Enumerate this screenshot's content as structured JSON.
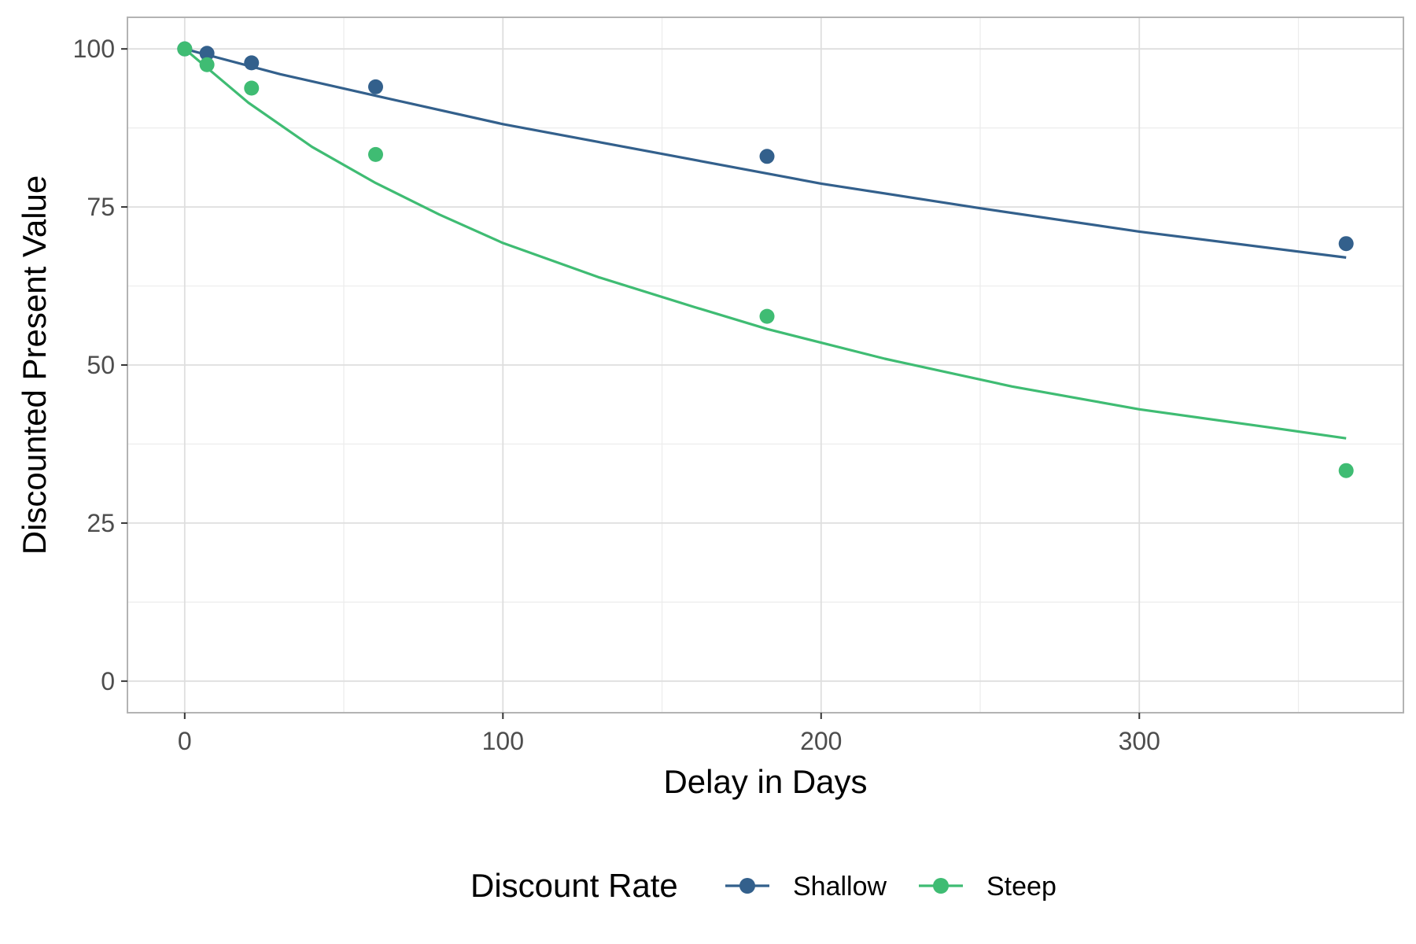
{
  "chart_data": {
    "type": "scatter",
    "title": "",
    "xlabel": "Delay in Days",
    "ylabel": "Discounted Present Value",
    "xlim": [
      -18,
      383
    ],
    "ylim": [
      -5,
      105
    ],
    "x_ticks": [
      0,
      100,
      200,
      300
    ],
    "x_tick_labels": [
      "0",
      "100",
      "200",
      "300"
    ],
    "y_ticks": [
      0,
      25,
      50,
      75,
      100
    ],
    "y_tick_labels": [
      "0",
      "25",
      "50",
      "75",
      "100"
    ],
    "grid": true,
    "legend": {
      "title": "Discount Rate",
      "position": "bottom"
    },
    "series": [
      {
        "name": "Shallow",
        "color": "#33608c",
        "points": [
          {
            "x": 0,
            "y": 100
          },
          {
            "x": 7,
            "y": 99.3
          },
          {
            "x": 21,
            "y": 97.8
          },
          {
            "x": 60,
            "y": 94
          },
          {
            "x": 183,
            "y": 83
          },
          {
            "x": 365,
            "y": 69.2
          }
        ],
        "fit_line": [
          {
            "x": 0,
            "y": 100
          },
          {
            "x": 30,
            "y": 96
          },
          {
            "x": 60,
            "y": 92.6
          },
          {
            "x": 100,
            "y": 88.1
          },
          {
            "x": 150,
            "y": 83.4
          },
          {
            "x": 200,
            "y": 78.7
          },
          {
            "x": 250,
            "y": 74.8
          },
          {
            "x": 300,
            "y": 71.1
          },
          {
            "x": 365,
            "y": 67
          }
        ]
      },
      {
        "name": "Steep",
        "color": "#3fbc73",
        "points": [
          {
            "x": 0,
            "y": 100
          },
          {
            "x": 7,
            "y": 97.5
          },
          {
            "x": 21,
            "y": 93.8
          },
          {
            "x": 60,
            "y": 83.3
          },
          {
            "x": 183,
            "y": 57.7
          },
          {
            "x": 365,
            "y": 33.3
          }
        ],
        "fit_line": [
          {
            "x": 0,
            "y": 100
          },
          {
            "x": 20,
            "y": 91.5
          },
          {
            "x": 40,
            "y": 84.5
          },
          {
            "x": 60,
            "y": 78.8
          },
          {
            "x": 80,
            "y": 73.8
          },
          {
            "x": 100,
            "y": 69.3
          },
          {
            "x": 130,
            "y": 63.9
          },
          {
            "x": 160,
            "y": 59.2
          },
          {
            "x": 183,
            "y": 55.7
          },
          {
            "x": 220,
            "y": 51
          },
          {
            "x": 260,
            "y": 46.6
          },
          {
            "x": 300,
            "y": 43
          },
          {
            "x": 340,
            "y": 40.2
          },
          {
            "x": 365,
            "y": 38.4
          }
        ]
      }
    ]
  }
}
